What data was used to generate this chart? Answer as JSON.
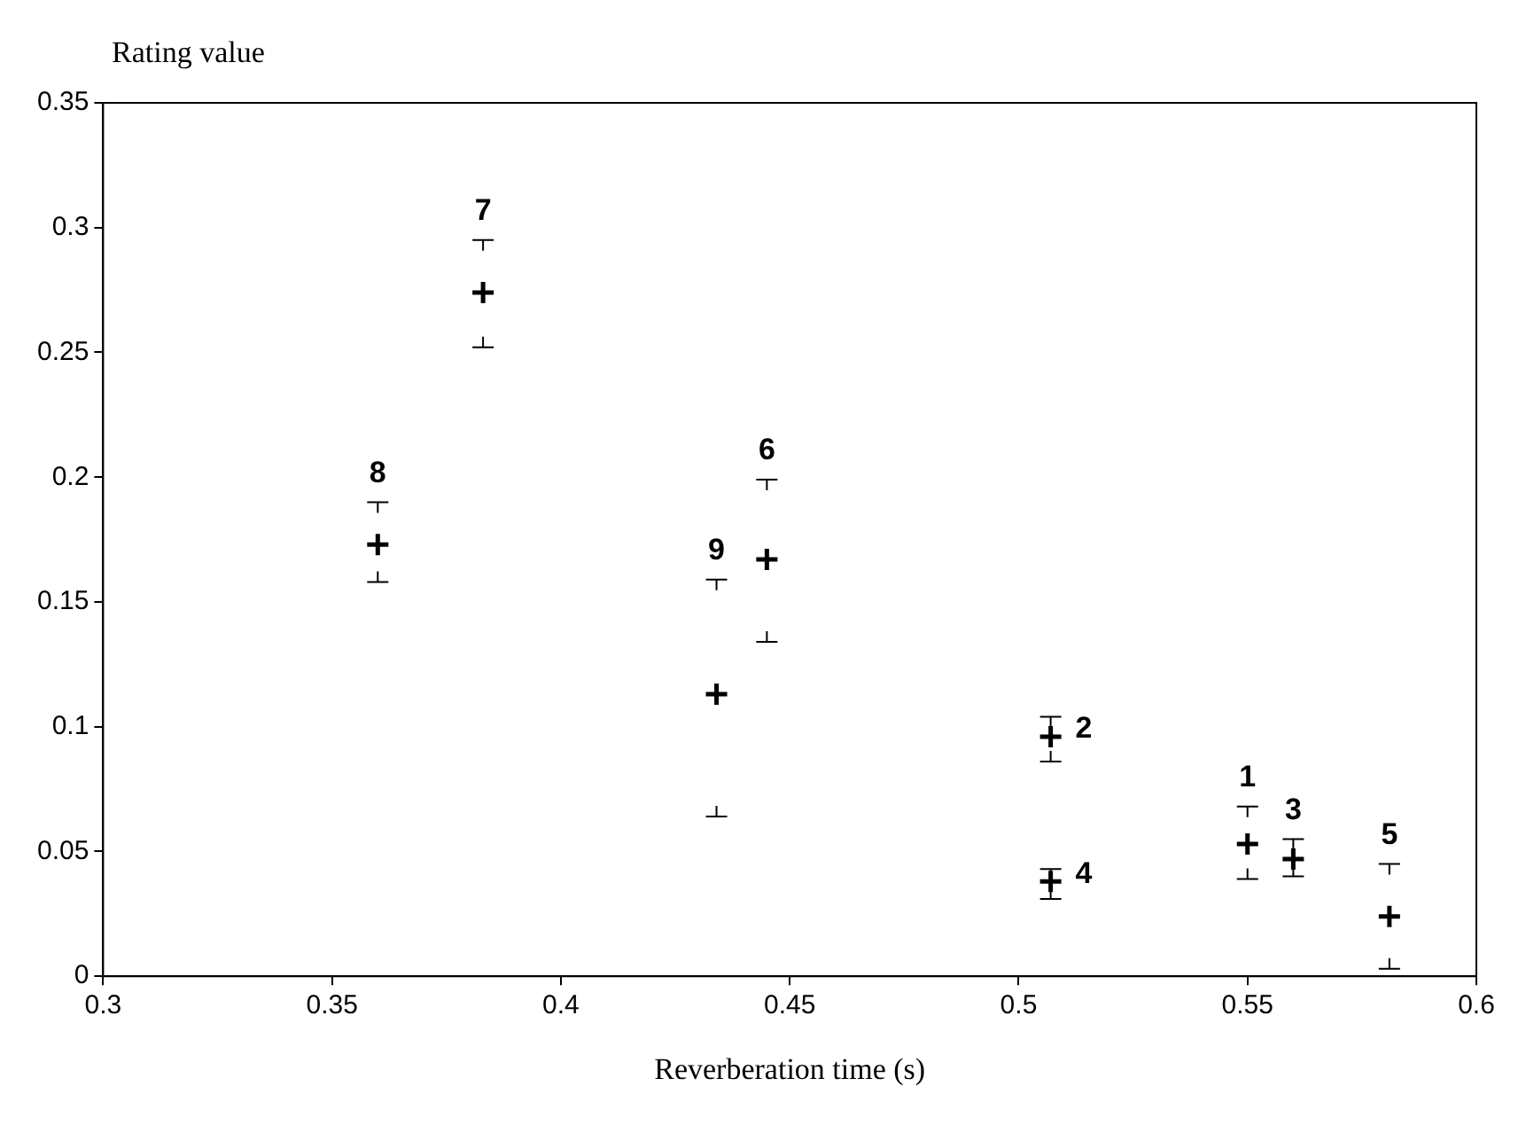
{
  "chart_data": {
    "type": "scatter",
    "xlabel": "Reverberation time (s)",
    "ylabel": "Rating value",
    "x": [
      0.36,
      0.383,
      0.434,
      0.445,
      0.507,
      0.507,
      0.55,
      0.56,
      0.581
    ],
    "series": [
      {
        "color": "#000000",
        "values": [
          0.173,
          0.274,
          0.113,
          0.167,
          0.096,
          0.038,
          0.053,
          0.047,
          0.024
        ],
        "errors": [
          [
            0.158,
            0.19
          ],
          [
            0.252,
            0.295
          ],
          [
            0.064,
            0.159
          ],
          [
            0.134,
            0.199
          ],
          [
            0.086,
            0.104
          ],
          [
            0.031,
            0.043
          ],
          [
            0.039,
            0.068
          ],
          [
            0.04,
            0.055
          ],
          [
            0.003,
            0.045
          ]
        ]
      }
    ],
    "annotations": [
      {
        "text": "8",
        "x": 0.36,
        "y": 0.19
      },
      {
        "text": "7",
        "x": 0.383,
        "y": 0.295
      },
      {
        "text": "9",
        "x": 0.434,
        "y": 0.159
      },
      {
        "text": "6",
        "x": 0.445,
        "y": 0.199
      },
      {
        "text": "2",
        "x": 0.507,
        "y": 0.096
      },
      {
        "text": "4",
        "x": 0.507,
        "y": 0.038
      },
      {
        "text": "1",
        "x": 0.55,
        "y": 0.068
      },
      {
        "text": "3",
        "x": 0.56,
        "y": 0.055
      },
      {
        "text": "5",
        "x": 0.581,
        "y": 0.045
      }
    ],
    "xlim": [
      0.3,
      0.6
    ],
    "xticks": [
      0.3,
      0.35,
      0.4,
      0.45,
      0.5,
      0.55,
      0.6
    ],
    "ylim": [
      0,
      0.35
    ],
    "yticks": [
      0,
      0.05,
      0.1,
      0.15,
      0.2,
      0.25,
      0.3,
      0.35
    ],
    "grid": false,
    "legend": false,
    "marker": "cross"
  }
}
